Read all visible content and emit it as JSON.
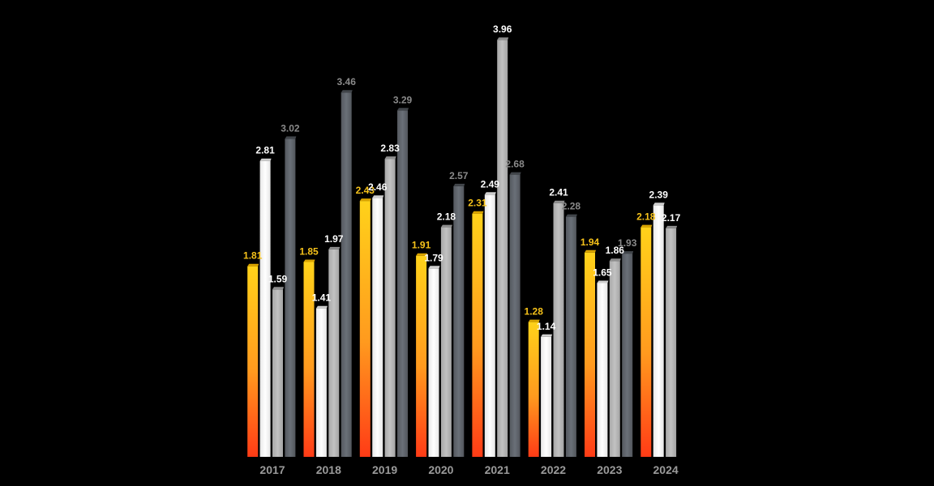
{
  "chart_data": {
    "type": "bar",
    "categories": [
      "2017",
      "2018",
      "2019",
      "2020",
      "2021",
      "2022",
      "2023",
      "2024"
    ],
    "series": [
      {
        "values": [
          1.81,
          1.85,
          2.43,
          1.91,
          2.31,
          1.28,
          1.94,
          2.18
        ],
        "color": "#f6c21a"
      },
      {
        "values": [
          2.81,
          1.41,
          2.46,
          1.79,
          2.49,
          1.14,
          1.65,
          2.39
        ],
        "color": "#ffffff"
      },
      {
        "values": [
          1.59,
          1.97,
          2.83,
          2.18,
          3.96,
          2.41,
          1.86,
          2.17
        ],
        "color": "#b4b4b4"
      },
      {
        "values": [
          3.02,
          3.46,
          3.29,
          2.57,
          2.68,
          2.28,
          1.93,
          null
        ],
        "color": "#5f666e"
      }
    ],
    "value_labels": [
      [
        "1.81",
        "1.85",
        "2.43",
        "1.91",
        "2.31",
        "1.28",
        "1.94",
        "2.18"
      ],
      [
        "2.81",
        "1.41",
        "2.46",
        "1.79",
        "2.49",
        "1.14",
        "1.65",
        "2.39"
      ],
      [
        "1.59",
        "1.97",
        "2.83",
        "2.18",
        "3.96",
        "2.41",
        "1.86",
        "2.17"
      ],
      [
        "3.02",
        "3.46",
        "3.29",
        "2.57",
        "2.68",
        "2.28",
        "1.93",
        ""
      ]
    ],
    "label_colors": [
      "#f6c21a",
      "#ffffff",
      "#ffffff",
      "#8a8a8a"
    ],
    "ylim": [
      0,
      4.05
    ],
    "grid": false,
    "background": "#000000"
  }
}
